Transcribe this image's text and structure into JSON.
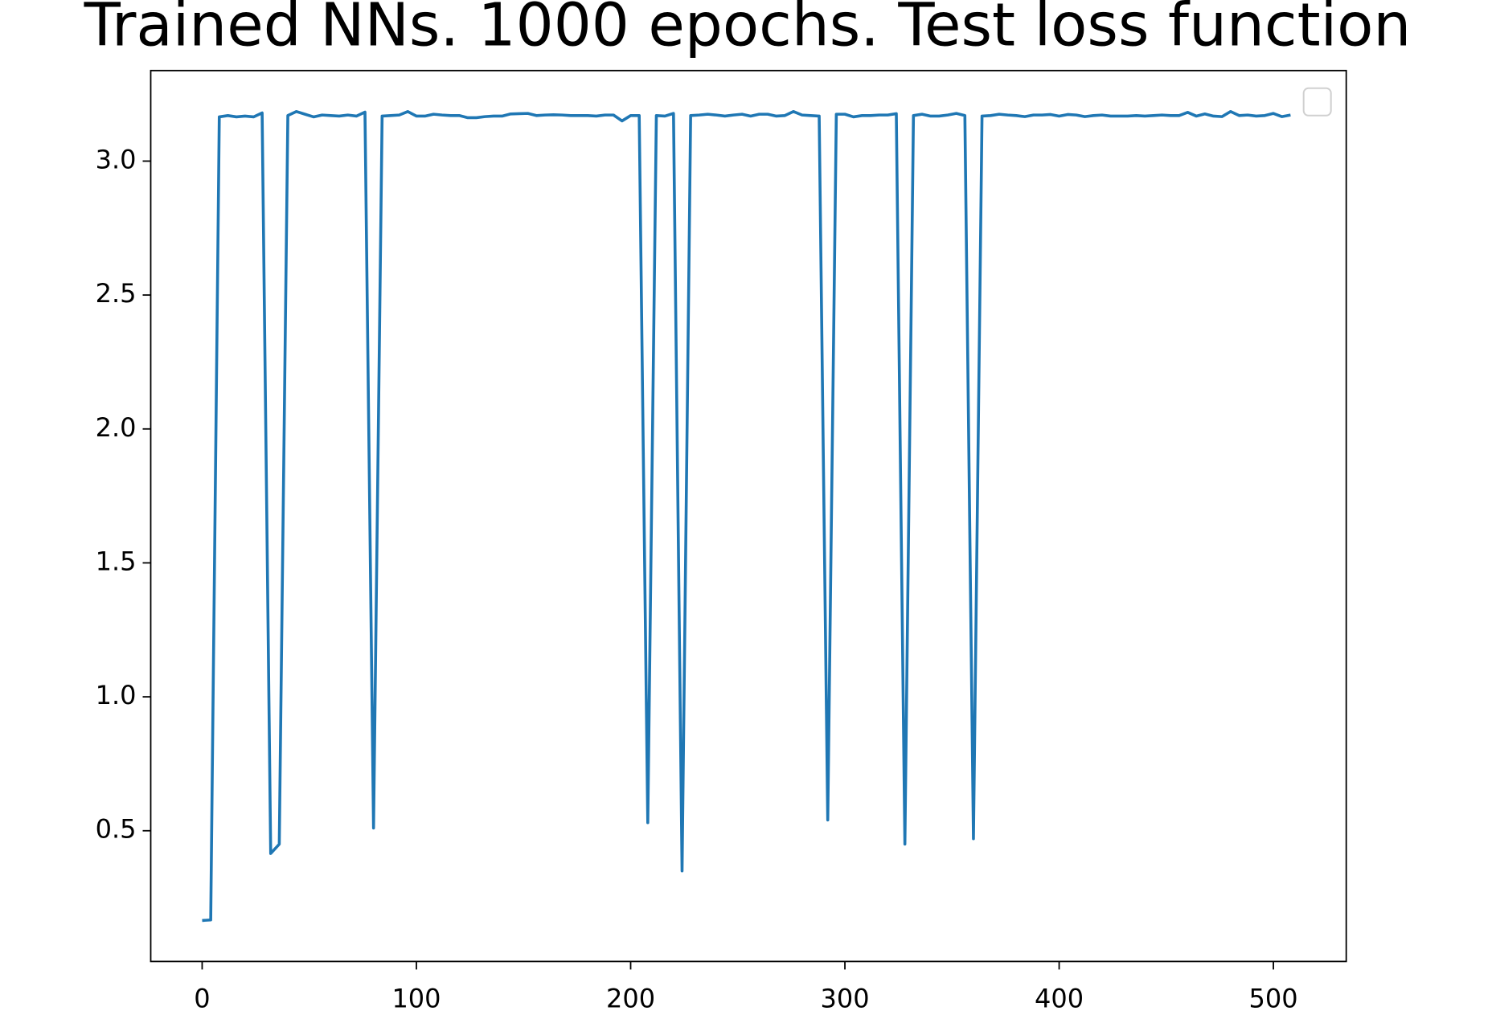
{
  "chart_data": {
    "type": "line",
    "title": "Trained NNs. 1000 epochs. Test loss function",
    "x": [
      0,
      4,
      8,
      12,
      16,
      20,
      24,
      28,
      32,
      36,
      40,
      44,
      48,
      52,
      56,
      60,
      64,
      68,
      72,
      76,
      80,
      84,
      88,
      92,
      96,
      100,
      104,
      108,
      112,
      116,
      120,
      124,
      128,
      132,
      136,
      140,
      144,
      148,
      152,
      156,
      160,
      164,
      168,
      172,
      176,
      180,
      184,
      188,
      192,
      196,
      200,
      204,
      208,
      212,
      216,
      220,
      224,
      228,
      232,
      236,
      240,
      244,
      248,
      252,
      256,
      260,
      264,
      268,
      272,
      276,
      280,
      284,
      288,
      292,
      296,
      300,
      304,
      308,
      312,
      316,
      320,
      324,
      328,
      332,
      336,
      340,
      344,
      348,
      352,
      356,
      360,
      364,
      368,
      372,
      376,
      380,
      384,
      388,
      392,
      396,
      400,
      404,
      408,
      412,
      416,
      420,
      424,
      428,
      432,
      436,
      440,
      444,
      448,
      452,
      456,
      460,
      464,
      468,
      472,
      476,
      480,
      484,
      488,
      492,
      496,
      500,
      504,
      508
    ],
    "series": [
      {
        "color": "#1f77b4",
        "values": [
          0.165,
          0.167,
          3.165,
          3.17,
          3.165,
          3.168,
          3.165,
          3.18,
          0.415,
          0.45,
          3.17,
          3.185,
          3.175,
          3.165,
          3.172,
          3.17,
          3.168,
          3.172,
          3.168,
          3.183,
          0.51,
          3.168,
          3.17,
          3.172,
          3.185,
          3.168,
          3.168,
          3.175,
          3.172,
          3.17,
          3.17,
          3.162,
          3.162,
          3.166,
          3.168,
          3.168,
          3.176,
          3.177,
          3.178,
          3.17,
          3.172,
          3.173,
          3.172,
          3.17,
          3.17,
          3.17,
          3.168,
          3.172,
          3.172,
          3.15,
          3.17,
          3.17,
          0.53,
          3.17,
          3.168,
          3.178,
          0.35,
          3.17,
          3.172,
          3.175,
          3.172,
          3.168,
          3.172,
          3.175,
          3.168,
          3.175,
          3.175,
          3.168,
          3.17,
          3.185,
          3.172,
          3.17,
          3.168,
          0.54,
          3.175,
          3.175,
          3.165,
          3.17,
          3.17,
          3.172,
          3.172,
          3.177,
          0.45,
          3.17,
          3.175,
          3.168,
          3.168,
          3.172,
          3.178,
          3.17,
          0.47,
          3.168,
          3.17,
          3.175,
          3.172,
          3.17,
          3.166,
          3.172,
          3.172,
          3.174,
          3.168,
          3.174,
          3.172,
          3.166,
          3.17,
          3.172,
          3.168,
          3.168,
          3.168,
          3.17,
          3.168,
          3.17,
          3.172,
          3.17,
          3.17,
          3.182,
          3.168,
          3.176,
          3.168,
          3.166,
          3.185,
          3.17,
          3.172,
          3.168,
          3.17,
          3.178,
          3.166,
          3.172
        ]
      }
    ],
    "xlim": [
      -24,
      534
    ],
    "ylim": [
      0.012,
      3.338
    ],
    "xticks": [
      0,
      100,
      200,
      300,
      400,
      500
    ],
    "yticks": [
      {
        "value": 0.5,
        "label": "0.5"
      },
      {
        "value": 1.0,
        "label": "1.0"
      },
      {
        "value": 1.5,
        "label": "1.5"
      },
      {
        "value": 2.0,
        "label": "2.0"
      },
      {
        "value": 2.5,
        "label": "2.5"
      },
      {
        "value": 3.0,
        "label": "3.0"
      }
    ],
    "legend": "upper right"
  }
}
